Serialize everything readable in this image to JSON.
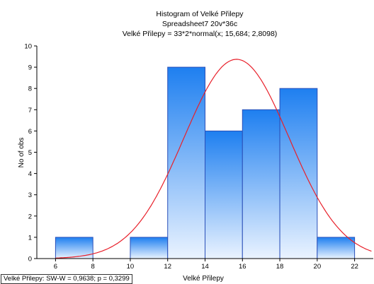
{
  "chart_data": {
    "type": "bar",
    "subtype": "histogram",
    "title": "Histogram of Velké Přilepy",
    "subtitle": "Spreadsheet7 20v*36c",
    "fit_label": "Velké Přilepy = 33*2*normal(x; 15,684; 2,8098)",
    "xlabel": "Velké Přilepy",
    "ylabel": "No of obs",
    "xlim": [
      5,
      23
    ],
    "ylim": [
      0,
      10
    ],
    "xticks": [
      "6",
      "8",
      "10",
      "12",
      "14",
      "16",
      "18",
      "20",
      "22"
    ],
    "yticks": [
      "0",
      "1",
      "2",
      "3",
      "4",
      "5",
      "6",
      "7",
      "8",
      "9",
      "10"
    ],
    "grid": false,
    "bins": [
      {
        "from": 6,
        "to": 8,
        "count": 1
      },
      {
        "from": 8,
        "to": 10,
        "count": 0
      },
      {
        "from": 10,
        "to": 12,
        "count": 1
      },
      {
        "from": 12,
        "to": 14,
        "count": 9
      },
      {
        "from": 14,
        "to": 16,
        "count": 6
      },
      {
        "from": 16,
        "to": 18,
        "count": 7
      },
      {
        "from": 18,
        "to": 20,
        "count": 8
      },
      {
        "from": 20,
        "to": 22,
        "count": 1
      }
    ],
    "normal_fit": {
      "n": 33,
      "bin_width": 2,
      "mean": 15.684,
      "sd": 2.8098,
      "color": "#e8202a"
    },
    "bar_colors": {
      "top": "#1e7ff0",
      "bottom": "#eaf3ff",
      "border": "#2a4fb8"
    },
    "stat_text": "Velké Přilepy:  SW-W = 0,9638; p = 0,3299"
  }
}
